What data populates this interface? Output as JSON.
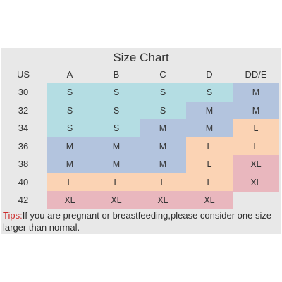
{
  "title": "Size Chart",
  "header": {
    "band_label": "US",
    "cups": [
      "A",
      "B",
      "C",
      "D",
      "DD/E"
    ]
  },
  "rows": [
    {
      "band": "30",
      "sizes": [
        "S",
        "S",
        "S",
        "S",
        "M"
      ]
    },
    {
      "band": "32",
      "sizes": [
        "S",
        "S",
        "S",
        "M",
        "M"
      ]
    },
    {
      "band": "34",
      "sizes": [
        "S",
        "S",
        "M",
        "M",
        "L"
      ]
    },
    {
      "band": "36",
      "sizes": [
        "M",
        "M",
        "M",
        "L",
        "L"
      ]
    },
    {
      "band": "38",
      "sizes": [
        "M",
        "M",
        "M",
        "L",
        "XL"
      ]
    },
    {
      "band": "40",
      "sizes": [
        "L",
        "L",
        "L",
        "L",
        "XL"
      ]
    },
    {
      "band": "42",
      "sizes": [
        "XL",
        "XL",
        "XL",
        "XL",
        ""
      ]
    }
  ],
  "size_colors": {
    "S": "#b4dde3",
    "M": "#b3c4de",
    "L": "#fbd3b4",
    "XL": "#e9b7be"
  },
  "tips": {
    "label": "Tips:",
    "text": "If you are pregnant or breastfeeding,please consider one size larger than normal."
  }
}
